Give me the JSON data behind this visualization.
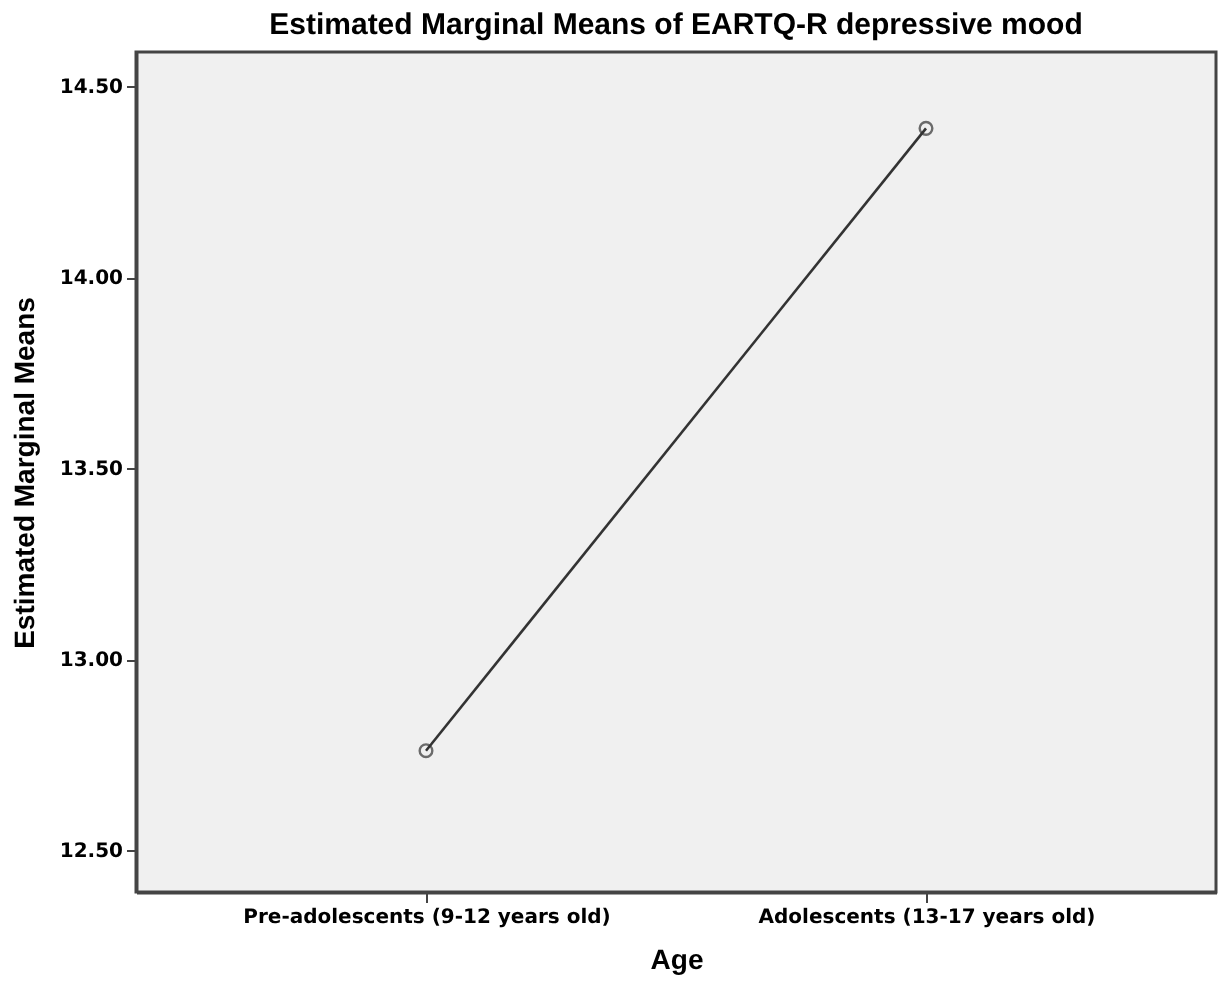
{
  "chart_data": {
    "type": "line",
    "title": "Estimated Marginal Means of EARTQ-R depressive mood",
    "xlabel": "Age",
    "ylabel": "Estimated Marginal Means",
    "categories": [
      "Pre-adolescents (9-12 years old)",
      "Adolescents (13-17 years old)"
    ],
    "series": [
      {
        "color": "#333333",
        "values": [
          12.76,
          14.39
        ]
      }
    ],
    "ylim": [
      12.39,
      14.59
    ],
    "yticks": [
      {
        "value": 12.5,
        "label": "12.50"
      },
      {
        "value": 13,
        "label": "13.00"
      },
      {
        "value": 13.5,
        "label": "13.50"
      },
      {
        "value": 14,
        "label": "14.00"
      },
      {
        "value": 14.5,
        "label": "14.50"
      }
    ],
    "grid": false,
    "legend": false,
    "marker": "circle",
    "line_style": "solid"
  }
}
